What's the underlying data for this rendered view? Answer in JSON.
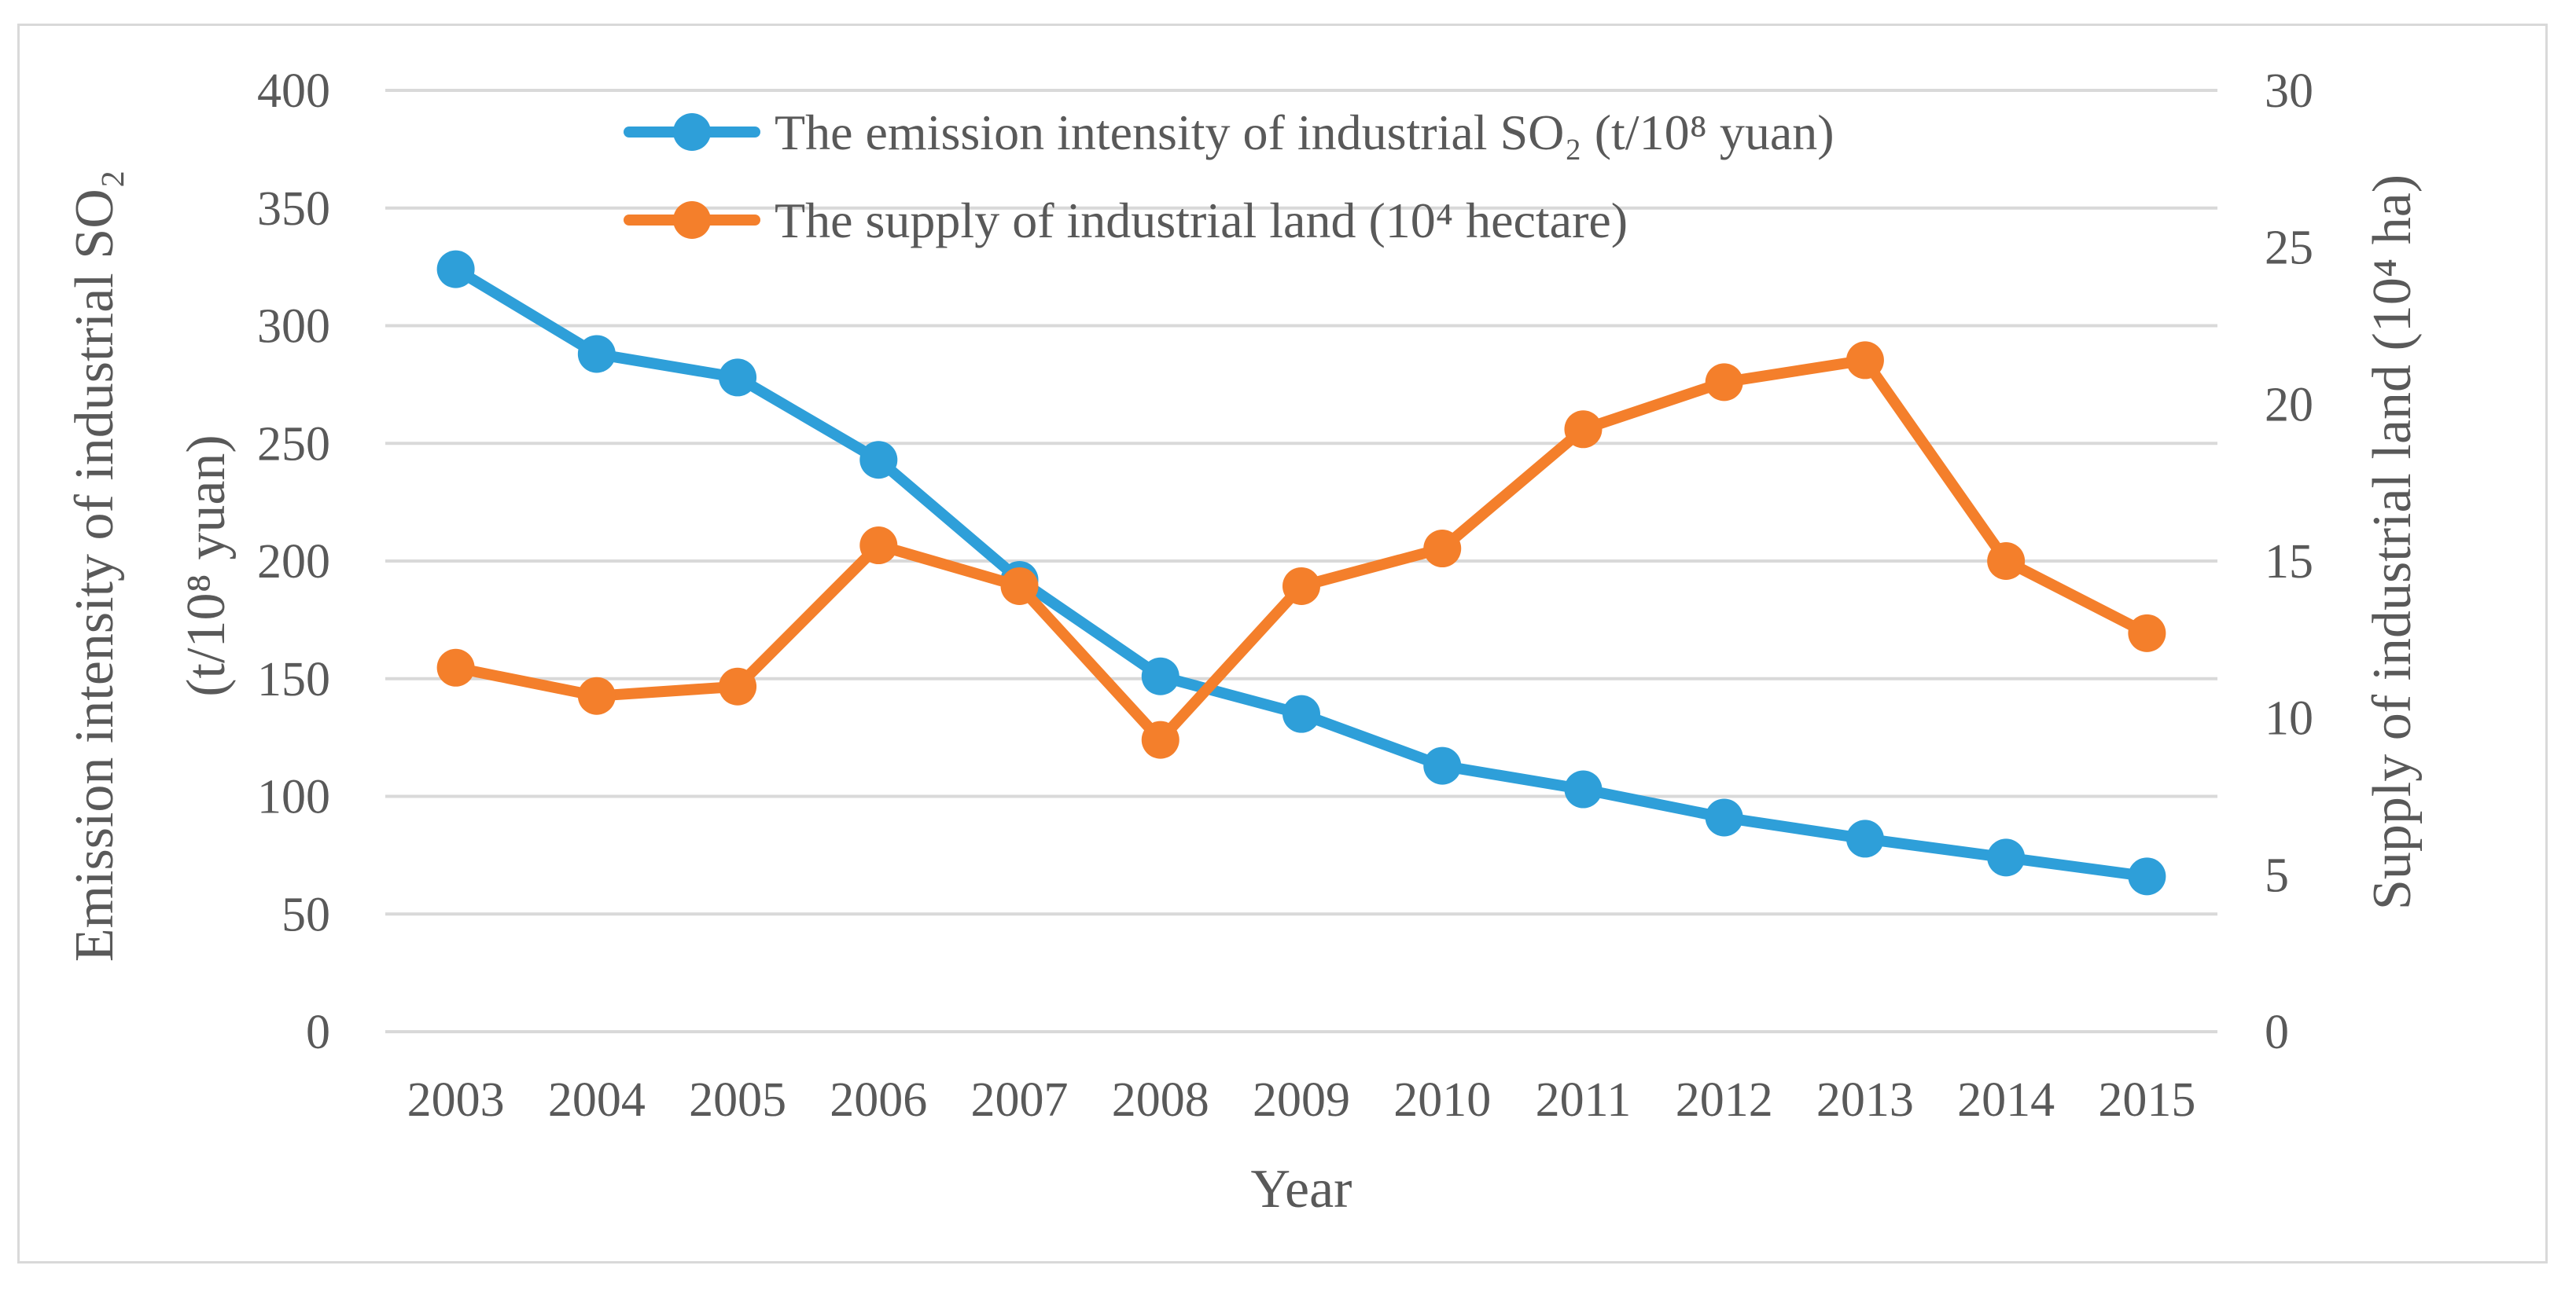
{
  "chart_data": {
    "type": "line",
    "categories": [
      "2003",
      "2004",
      "2005",
      "2006",
      "2007",
      "2008",
      "2009",
      "2010",
      "2011",
      "2012",
      "2013",
      "2014",
      "2015"
    ],
    "series": [
      {
        "name": "The emission intensity of industrial SO₂ (t/10⁸ yuan)",
        "axis": "left",
        "color": "#2e9fd9",
        "values": [
          324,
          288,
          278,
          243,
          192,
          151,
          135,
          113,
          103,
          91,
          82,
          74,
          66
        ]
      },
      {
        "name": "The supply of industrial land (10⁴ hectare)",
        "axis": "right",
        "color": "#f47f2b",
        "values": [
          11.6,
          10.7,
          11.0,
          15.5,
          14.2,
          9.3,
          14.2,
          15.4,
          19.2,
          20.7,
          21.4,
          15.0,
          12.7
        ]
      }
    ],
    "ylim_left": [
      0,
      400
    ],
    "yticks_left": [
      "0",
      "50",
      "100",
      "150",
      "200",
      "250",
      "300",
      "350",
      "400"
    ],
    "ylim_right": [
      0,
      30
    ],
    "yticks_right": [
      "0",
      "5",
      "10",
      "15",
      "20",
      "25",
      "30"
    ],
    "xlabel": "Year",
    "ylabel_left_line1": "Emission intensity of industrial SO₂",
    "ylabel_left_line2": "(t/10⁸ yuan)",
    "ylabel_right": "Supply of industrial land (10⁴ ha)",
    "grid": true,
    "legend_position": "top-center"
  }
}
